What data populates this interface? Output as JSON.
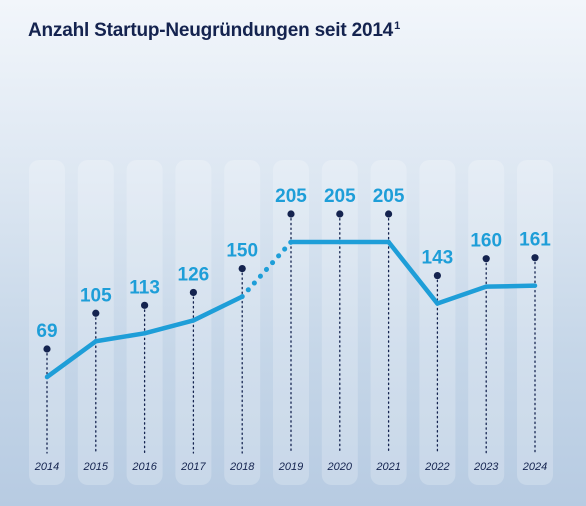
{
  "title": "Anzahl Startup-Neugründungen seit 2014",
  "title_footnote": "1",
  "colors": {
    "line": "#1e9ed8",
    "marker": "#14234f",
    "column": "#ffffff"
  },
  "chart_data": {
    "type": "line",
    "title": "Anzahl Startup-Neugründungen seit 2014",
    "categories": [
      "2014",
      "2015",
      "2016",
      "2017",
      "2018",
      "2019",
      "2020",
      "2021",
      "2022",
      "2023",
      "2024"
    ],
    "values": [
      69,
      105,
      113,
      126,
      150,
      205,
      205,
      205,
      143,
      160,
      161
    ],
    "dashed_segment": [
      "2018",
      "2019"
    ],
    "ylim": [
      0,
      230
    ],
    "grid": false,
    "xlabel": "",
    "ylabel": ""
  }
}
